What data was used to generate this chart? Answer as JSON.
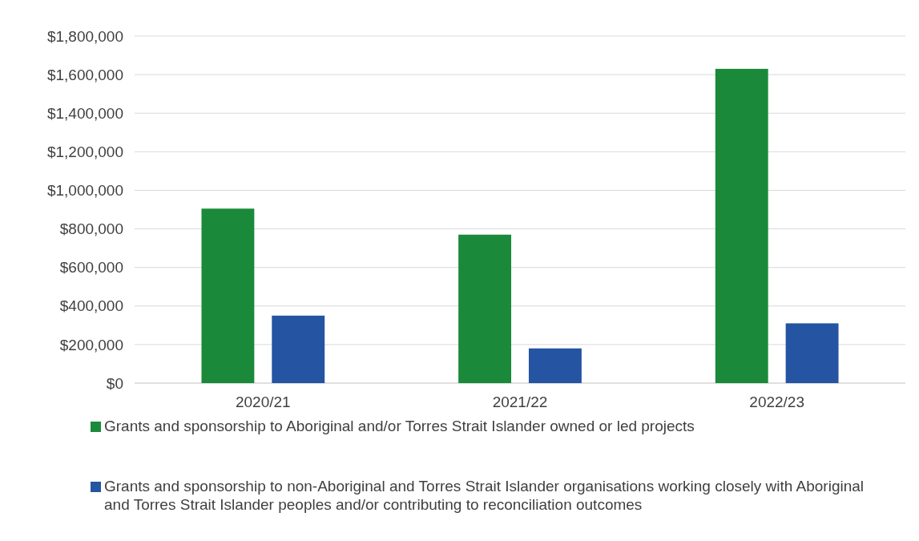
{
  "chart_data": {
    "type": "bar",
    "categories": [
      "2020/21",
      "2021/22",
      "2022/23"
    ],
    "series": [
      {
        "name": "Grants and sponsorship to Aboriginal and/or Torres Strait Islander owned or led projects",
        "color": "#1a8a3a",
        "values": [
          905000,
          770000,
          1630000
        ]
      },
      {
        "name": "Grants and sponsorship to non-Aboriginal and Torres Strait Islander organisations working closely with Aboriginal and Torres Strait Islander peoples and/or contributing to reconciliation outcomes",
        "color": "#2454a2",
        "values": [
          350000,
          180000,
          310000
        ]
      }
    ],
    "ylim": [
      0,
      1800000
    ],
    "yticks": [
      {
        "value": 0,
        "label": "$0"
      },
      {
        "value": 200000,
        "label": "$200,000"
      },
      {
        "value": 400000,
        "label": "$400,000"
      },
      {
        "value": 600000,
        "label": "$600,000"
      },
      {
        "value": 800000,
        "label": "$800,000"
      },
      {
        "value": 1000000,
        "label": "$1,000,000"
      },
      {
        "value": 1200000,
        "label": "$1,200,000"
      },
      {
        "value": 1400000,
        "label": "$1,400,000"
      },
      {
        "value": 1600000,
        "label": "$1,600,000"
      },
      {
        "value": 1800000,
        "label": "$1,800,000"
      }
    ],
    "grid": "y",
    "legend": "bottom"
  }
}
